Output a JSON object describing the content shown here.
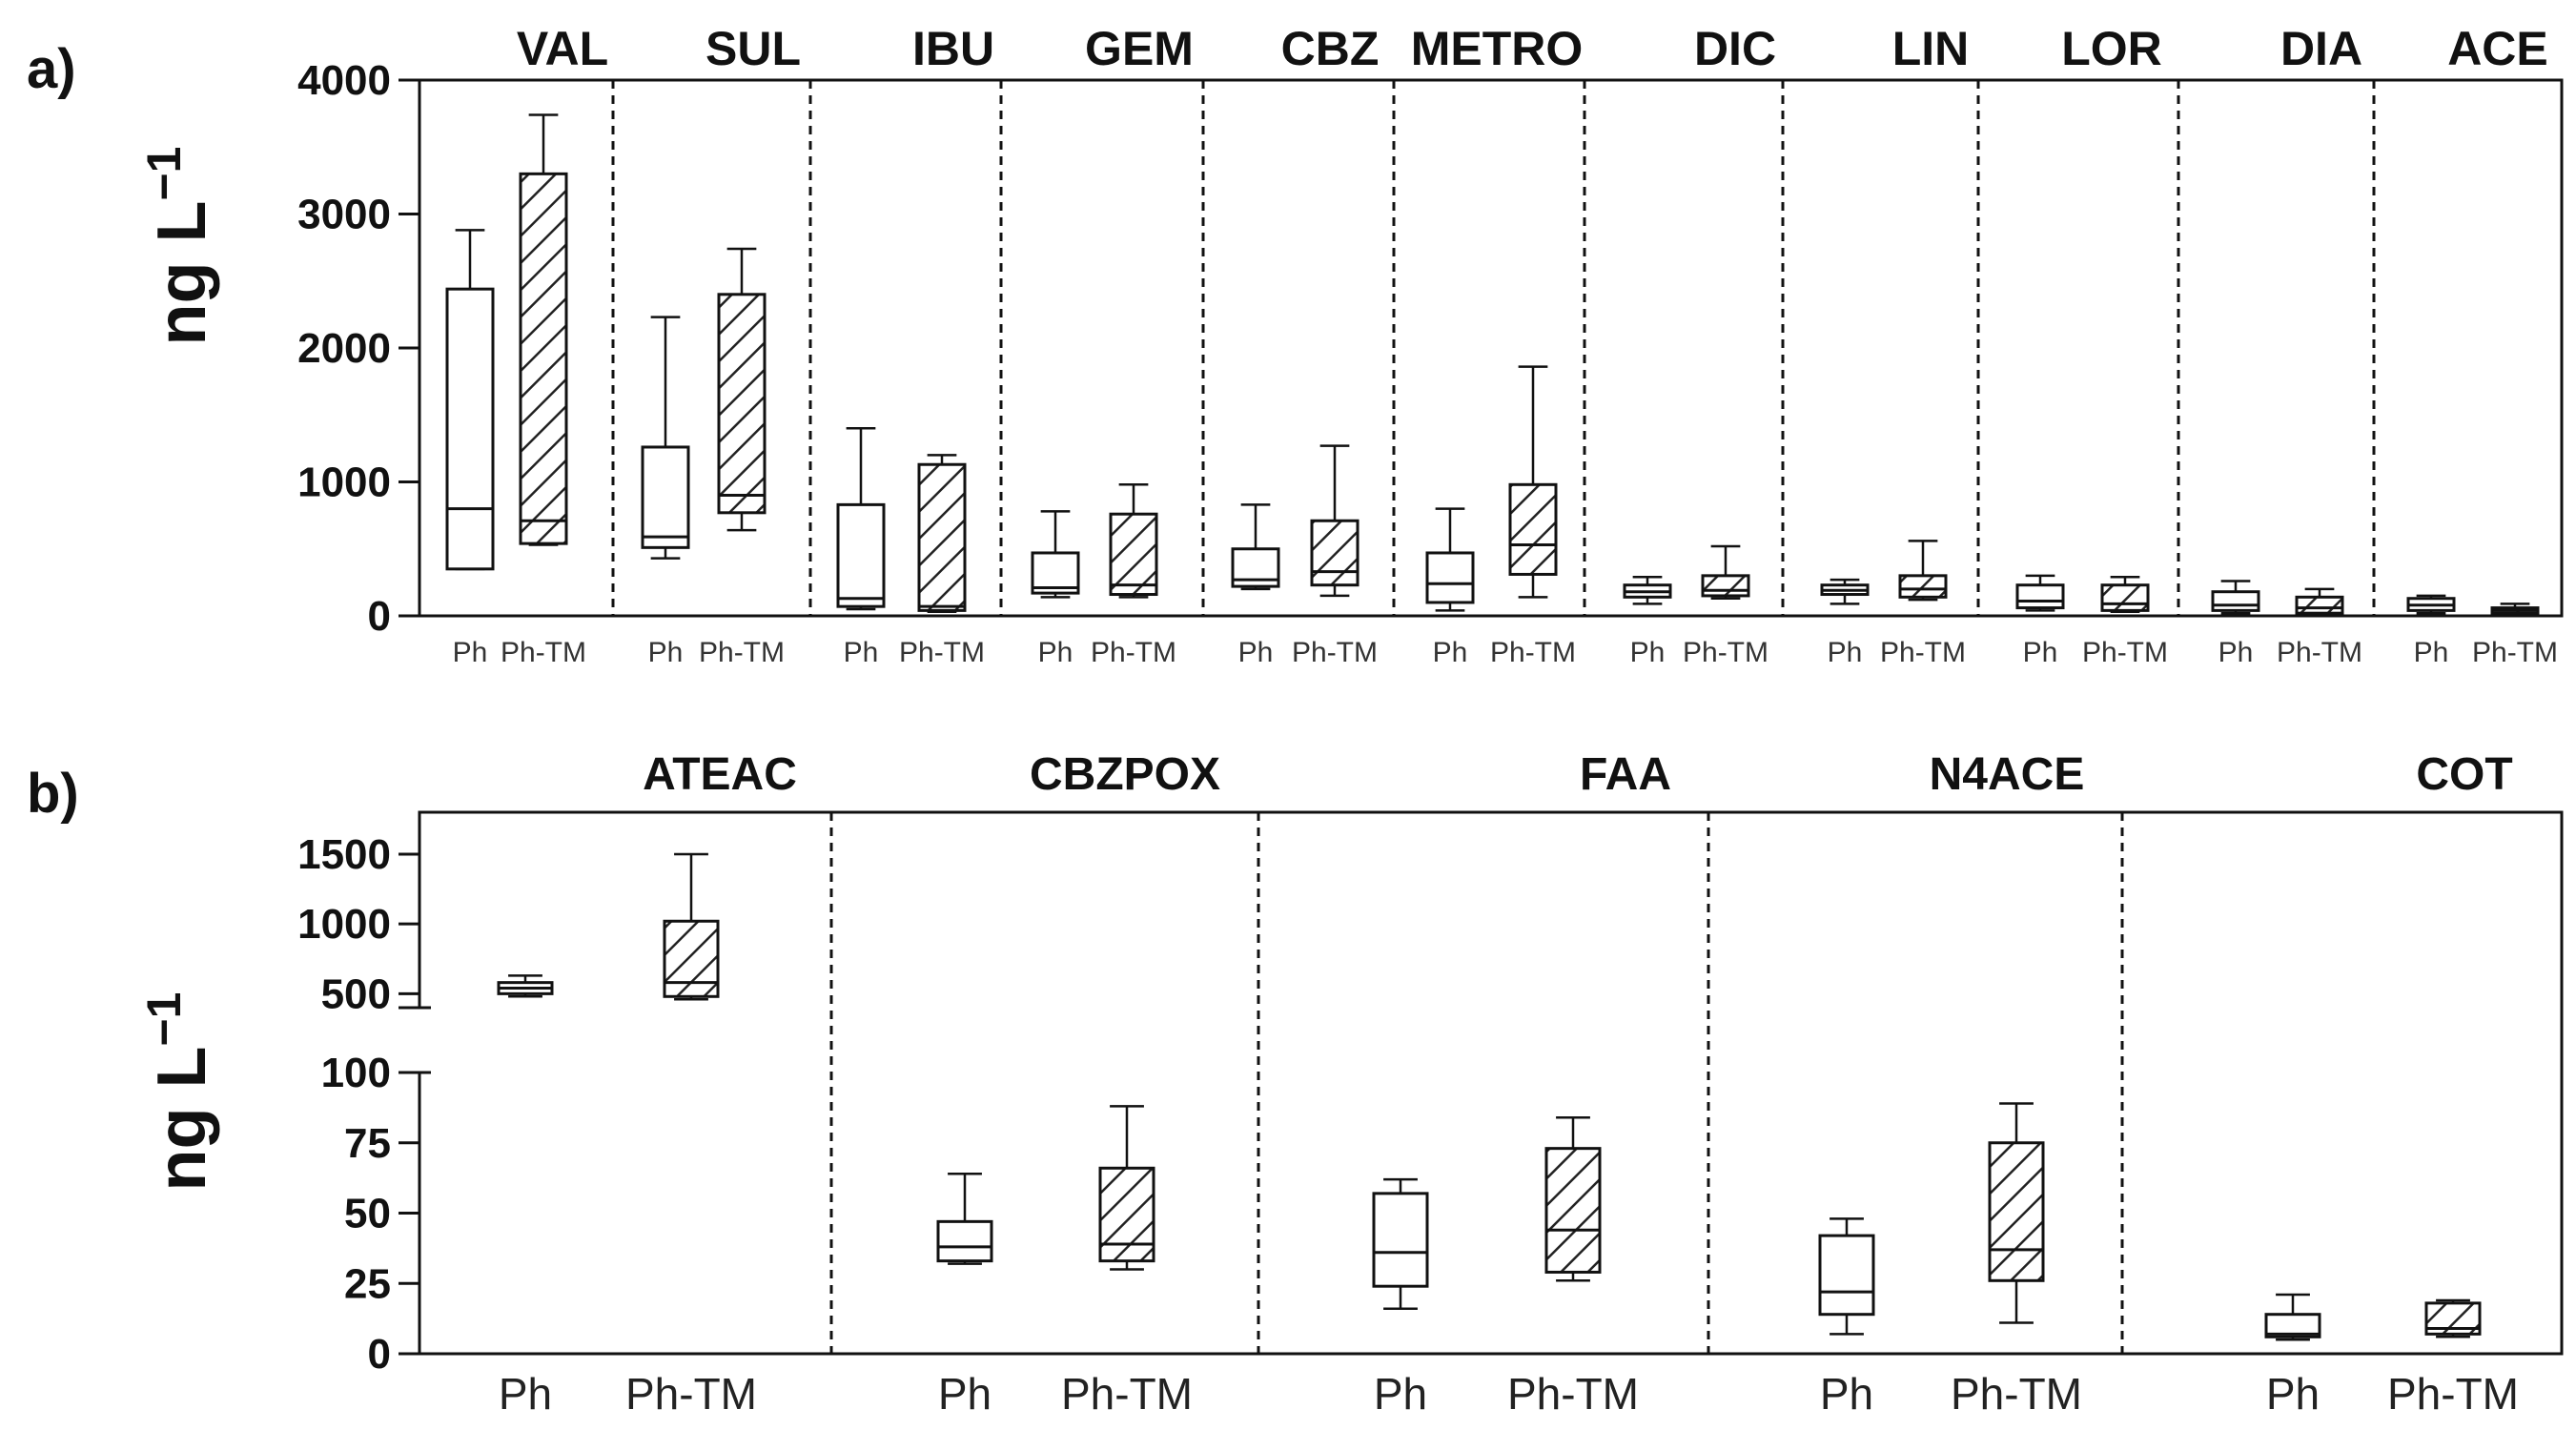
{
  "figure": {
    "hatch_color": "#222222",
    "box_edge_color": "#111111",
    "divider_color": "#111111"
  },
  "chart_data": [
    {
      "panel": "a)",
      "type": "box",
      "ylabel": "ng L",
      "ylabel_exponent": "−1",
      "ylim": [
        0,
        4000
      ],
      "yticks": [
        0,
        1000,
        2000,
        3000,
        4000
      ],
      "ytick_labels": [
        "0",
        "1000",
        "2000",
        "3000",
        "4000"
      ],
      "group_labels": [
        "Ph",
        "Ph-TM"
      ],
      "groups": [
        {
          "name": "VAL",
          "boxes": [
            {
              "label": "Ph",
              "hatched": false,
              "min": 350,
              "q1": 350,
              "median": 800,
              "q3": 2440,
              "max": 2880
            },
            {
              "label": "Ph-TM",
              "hatched": true,
              "min": 530,
              "q1": 540,
              "median": 710,
              "q3": 3300,
              "max": 3740
            }
          ]
        },
        {
          "name": "SUL",
          "boxes": [
            {
              "label": "Ph",
              "hatched": false,
              "min": 430,
              "q1": 510,
              "median": 590,
              "q3": 1260,
              "max": 2230
            },
            {
              "label": "Ph-TM",
              "hatched": true,
              "min": 640,
              "q1": 770,
              "median": 900,
              "q3": 2400,
              "max": 2740
            }
          ]
        },
        {
          "name": "IBU",
          "boxes": [
            {
              "label": "Ph",
              "hatched": false,
              "min": 50,
              "q1": 70,
              "median": 130,
              "q3": 830,
              "max": 1400
            },
            {
              "label": "Ph-TM",
              "hatched": true,
              "min": 30,
              "q1": 40,
              "median": 70,
              "q3": 1130,
              "max": 1200
            }
          ]
        },
        {
          "name": "GEM",
          "boxes": [
            {
              "label": "Ph",
              "hatched": false,
              "min": 140,
              "q1": 170,
              "median": 210,
              "q3": 470,
              "max": 780
            },
            {
              "label": "Ph-TM",
              "hatched": true,
              "min": 140,
              "q1": 160,
              "median": 230,
              "q3": 760,
              "max": 980
            }
          ]
        },
        {
          "name": "CBZ",
          "boxes": [
            {
              "label": "Ph",
              "hatched": false,
              "min": 200,
              "q1": 220,
              "median": 270,
              "q3": 500,
              "max": 830
            },
            {
              "label": "Ph-TM",
              "hatched": true,
              "min": 150,
              "q1": 230,
              "median": 330,
              "q3": 710,
              "max": 1270
            }
          ]
        },
        {
          "name": "METRO",
          "boxes": [
            {
              "label": "Ph",
              "hatched": false,
              "min": 40,
              "q1": 100,
              "median": 240,
              "q3": 470,
              "max": 800
            },
            {
              "label": "Ph-TM",
              "hatched": true,
              "min": 140,
              "q1": 310,
              "median": 530,
              "q3": 980,
              "max": 1860
            }
          ]
        },
        {
          "name": "DIC",
          "boxes": [
            {
              "label": "Ph",
              "hatched": false,
              "min": 90,
              "q1": 140,
              "median": 180,
              "q3": 230,
              "max": 290
            },
            {
              "label": "Ph-TM",
              "hatched": true,
              "min": 130,
              "q1": 150,
              "median": 190,
              "q3": 300,
              "max": 520
            }
          ]
        },
        {
          "name": "LIN",
          "boxes": [
            {
              "label": "Ph",
              "hatched": false,
              "min": 90,
              "q1": 160,
              "median": 190,
              "q3": 230,
              "max": 270
            },
            {
              "label": "Ph-TM",
              "hatched": true,
              "min": 120,
              "q1": 140,
              "median": 200,
              "q3": 300,
              "max": 560
            }
          ]
        },
        {
          "name": "LOR",
          "boxes": [
            {
              "label": "Ph",
              "hatched": false,
              "min": 40,
              "q1": 60,
              "median": 110,
              "q3": 230,
              "max": 300
            },
            {
              "label": "Ph-TM",
              "hatched": true,
              "min": 30,
              "q1": 40,
              "median": 90,
              "q3": 230,
              "max": 290
            }
          ]
        },
        {
          "name": "DIA",
          "boxes": [
            {
              "label": "Ph",
              "hatched": false,
              "min": 20,
              "q1": 40,
              "median": 80,
              "q3": 180,
              "max": 260
            },
            {
              "label": "Ph-TM",
              "hatched": true,
              "min": 10,
              "q1": 20,
              "median": 60,
              "q3": 140,
              "max": 200
            }
          ]
        },
        {
          "name": "ACE",
          "boxes": [
            {
              "label": "Ph",
              "hatched": false,
              "min": 20,
              "q1": 40,
              "median": 80,
              "q3": 130,
              "max": 150
            },
            {
              "label": "Ph-TM",
              "hatched": true,
              "min": 10,
              "q1": 20,
              "median": 40,
              "q3": 60,
              "max": 90
            }
          ]
        }
      ]
    },
    {
      "panel": "b)",
      "type": "box",
      "ylabel": "ng L",
      "ylabel_exponent": "−1",
      "broken_axis": true,
      "ylim_lower": [
        0,
        100
      ],
      "ylim_upper": [
        400,
        1500
      ],
      "yticks_lower": [
        0,
        25,
        50,
        75,
        100
      ],
      "ytick_labels_lower": [
        "0",
        "25",
        "50",
        "75",
        "100"
      ],
      "yticks_upper": [
        500,
        1000,
        1500
      ],
      "ytick_labels_upper": [
        "500",
        "1000",
        "1500"
      ],
      "group_labels": [
        "Ph",
        "Ph-TM"
      ],
      "groups": [
        {
          "name": "ATEAC",
          "boxes": [
            {
              "label": "Ph",
              "hatched": false,
              "min": 480,
              "q1": 500,
              "median": 540,
              "q3": 580,
              "max": 630
            },
            {
              "label": "Ph-TM",
              "hatched": true,
              "min": 460,
              "q1": 480,
              "median": 580,
              "q3": 1020,
              "max": 1500
            }
          ]
        },
        {
          "name": "CBZPOX",
          "boxes": [
            {
              "label": "Ph",
              "hatched": false,
              "min": 32,
              "q1": 33,
              "median": 38,
              "q3": 47,
              "max": 64
            },
            {
              "label": "Ph-TM",
              "hatched": true,
              "min": 30,
              "q1": 33,
              "median": 39,
              "q3": 66,
              "max": 88
            }
          ]
        },
        {
          "name": "FAA",
          "boxes": [
            {
              "label": "Ph",
              "hatched": false,
              "min": 16,
              "q1": 24,
              "median": 36,
              "q3": 57,
              "max": 62
            },
            {
              "label": "Ph-TM",
              "hatched": true,
              "min": 26,
              "q1": 29,
              "median": 44,
              "q3": 73,
              "max": 84
            }
          ]
        },
        {
          "name": "N4ACE",
          "boxes": [
            {
              "label": "Ph",
              "hatched": false,
              "min": 7,
              "q1": 14,
              "median": 22,
              "q3": 42,
              "max": 48
            },
            {
              "label": "Ph-TM",
              "hatched": true,
              "min": 11,
              "q1": 26,
              "median": 37,
              "q3": 75,
              "max": 89
            }
          ]
        },
        {
          "name": "COT",
          "boxes": [
            {
              "label": "Ph",
              "hatched": false,
              "min": 5,
              "q1": 6,
              "median": 7,
              "q3": 14,
              "max": 21
            },
            {
              "label": "Ph-TM",
              "hatched": true,
              "min": 6,
              "q1": 7,
              "median": 9,
              "q3": 18,
              "max": 19
            }
          ]
        }
      ]
    }
  ]
}
